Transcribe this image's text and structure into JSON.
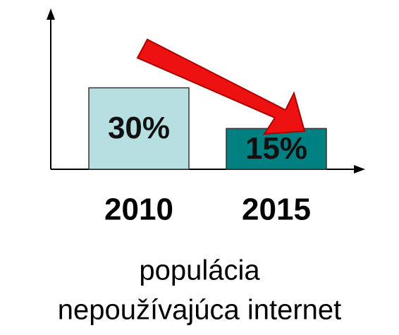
{
  "chart_data": {
    "type": "bar",
    "categories": [
      "2010",
      "2015"
    ],
    "values": [
      30,
      15
    ],
    "value_labels": [
      "30%",
      "15%"
    ],
    "colors": [
      "#b7dfe2",
      "#008080"
    ],
    "caption": [
      "populácia",
      "nepoužívajúca internet"
    ]
  }
}
